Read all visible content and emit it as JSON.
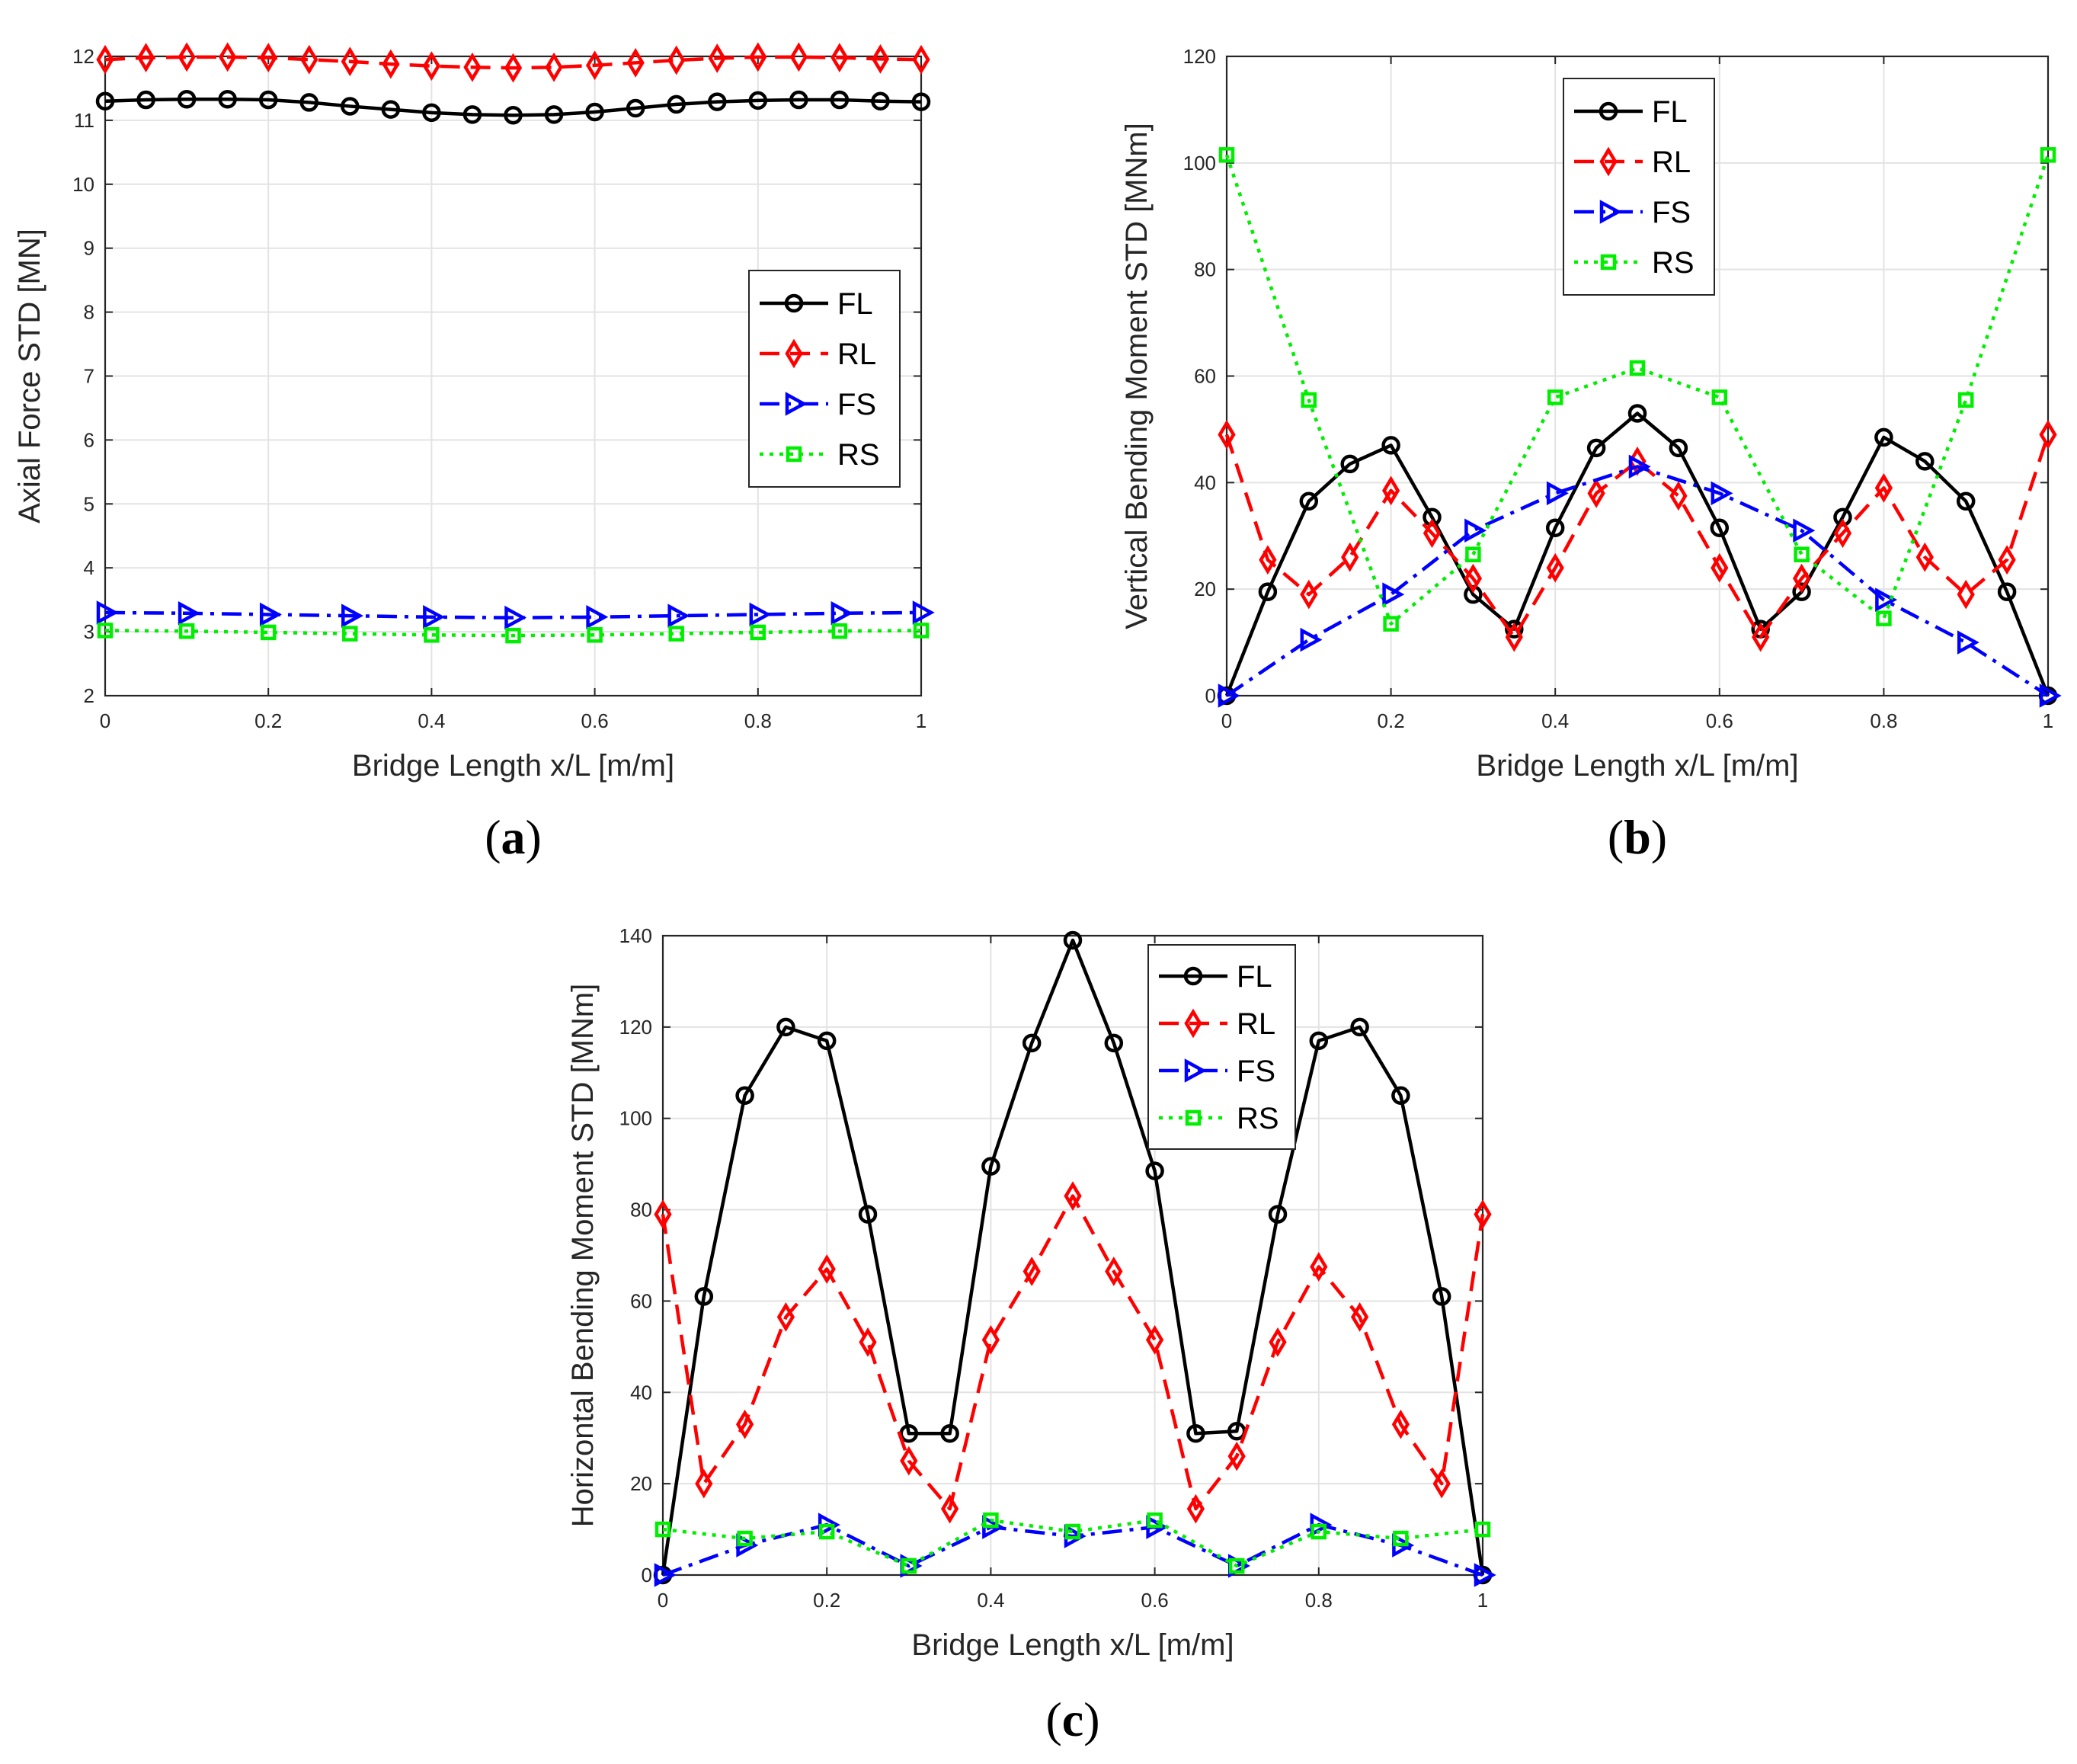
{
  "colors": {
    "FL": "#000000",
    "RL": "#ff0000",
    "FS": "#0000ff",
    "RS": "#00ee00",
    "grid": "#e3e3e3",
    "axis": "#262626"
  },
  "chart_data": [
    {
      "type": "line",
      "panel_label": {
        "open": "(",
        "letter": "a",
        "close": ")"
      },
      "xlabel": "Bridge Length x/L [m/m]",
      "ylabel": "Axial Force STD [MN]",
      "xlim": [
        0,
        1
      ],
      "ylim": [
        2,
        12
      ],
      "xticks": [
        "0",
        "0.2",
        "0.4",
        "0.6",
        "0.8",
        "1"
      ],
      "yticks": [
        "2",
        "3",
        "4",
        "5",
        "6",
        "7",
        "8",
        "9",
        "10",
        "11",
        "12"
      ],
      "grid": true,
      "legend_position": "right-middle",
      "series": [
        {
          "name": "FL",
          "style": "solid",
          "marker": "circle",
          "x": [
            0,
            0.05,
            0.1,
            0.15,
            0.2,
            0.25,
            0.3,
            0.35,
            0.4,
            0.45,
            0.5,
            0.55,
            0.6,
            0.65,
            0.7,
            0.75,
            0.8,
            0.85,
            0.9,
            0.95,
            1
          ],
          "y": [
            11.3,
            11.32,
            11.33,
            11.33,
            11.32,
            11.28,
            11.22,
            11.17,
            11.12,
            11.09,
            11.08,
            11.09,
            11.13,
            11.19,
            11.25,
            11.29,
            11.31,
            11.32,
            11.32,
            11.3,
            11.29
          ]
        },
        {
          "name": "RL",
          "style": "dashed",
          "marker": "diamond",
          "x": [
            0,
            0.05,
            0.1,
            0.15,
            0.2,
            0.25,
            0.3,
            0.35,
            0.4,
            0.45,
            0.5,
            0.55,
            0.6,
            0.65,
            0.7,
            0.75,
            0.8,
            0.85,
            0.9,
            0.95,
            1
          ],
          "y": [
            11.95,
            11.98,
            11.99,
            11.99,
            11.98,
            11.95,
            11.92,
            11.88,
            11.85,
            11.83,
            11.82,
            11.83,
            11.86,
            11.9,
            11.94,
            11.97,
            11.99,
            11.99,
            11.98,
            11.96,
            11.95
          ]
        },
        {
          "name": "FS",
          "style": "dashdot",
          "marker": "triangle",
          "x": [
            0,
            0.1,
            0.2,
            0.3,
            0.4,
            0.5,
            0.6,
            0.7,
            0.8,
            0.9,
            1
          ],
          "y": [
            3.3,
            3.29,
            3.27,
            3.25,
            3.23,
            3.22,
            3.23,
            3.25,
            3.27,
            3.29,
            3.3
          ]
        },
        {
          "name": "RS",
          "style": "dotted",
          "marker": "square",
          "x": [
            0,
            0.1,
            0.2,
            0.3,
            0.4,
            0.5,
            0.6,
            0.7,
            0.8,
            0.9,
            1
          ],
          "y": [
            3.02,
            3.01,
            2.99,
            2.97,
            2.95,
            2.94,
            2.95,
            2.97,
            2.99,
            3.01,
            3.02
          ]
        }
      ]
    },
    {
      "type": "line",
      "panel_label": {
        "open": "(",
        "letter": "b",
        "close": ")"
      },
      "xlabel": "Bridge Length x/L [m/m]",
      "ylabel": "Vertical Bending Moment STD [MNm]",
      "xlim": [
        0,
        1
      ],
      "ylim": [
        0,
        120
      ],
      "xticks": [
        "0",
        "0.2",
        "0.4",
        "0.6",
        "0.8",
        "1"
      ],
      "yticks": [
        "0",
        "20",
        "40",
        "60",
        "80",
        "100",
        "120"
      ],
      "grid": true,
      "legend_position": "top-center",
      "series": [
        {
          "name": "FL",
          "style": "solid",
          "marker": "circle",
          "x": [
            0,
            0.05,
            0.1,
            0.15,
            0.2,
            0.25,
            0.3,
            0.35,
            0.4,
            0.45,
            0.5,
            0.55,
            0.6,
            0.65,
            0.7,
            0.75,
            0.8,
            0.85,
            0.9,
            0.95,
            1
          ],
          "y": [
            0,
            19.5,
            36.5,
            43.5,
            47,
            33.5,
            19,
            12.5,
            31.5,
            46.5,
            53,
            46.5,
            31.5,
            12.5,
            19.5,
            33.5,
            48.5,
            44,
            36.5,
            19.5,
            0
          ]
        },
        {
          "name": "RL",
          "style": "dashed",
          "marker": "diamond",
          "x": [
            0,
            0.05,
            0.1,
            0.15,
            0.2,
            0.25,
            0.3,
            0.35,
            0.4,
            0.45,
            0.5,
            0.55,
            0.6,
            0.65,
            0.7,
            0.75,
            0.8,
            0.85,
            0.9,
            0.95,
            1
          ],
          "y": [
            49,
            25.5,
            19,
            26,
            38.5,
            30.5,
            22,
            11,
            24,
            38,
            44,
            37.5,
            24,
            11,
            22,
            30.5,
            39,
            26,
            19,
            25.5,
            49
          ]
        },
        {
          "name": "FS",
          "style": "dashdot",
          "marker": "triangle",
          "x": [
            0,
            0.1,
            0.2,
            0.3,
            0.4,
            0.5,
            0.6,
            0.7,
            0.8,
            0.9,
            1
          ],
          "y": [
            0,
            10.5,
            19,
            31,
            38,
            43,
            38,
            31,
            18,
            10,
            0
          ]
        },
        {
          "name": "RS",
          "style": "dotted",
          "marker": "square",
          "x": [
            0,
            0.1,
            0.2,
            0.3,
            0.4,
            0.5,
            0.6,
            0.7,
            0.8,
            0.9,
            1
          ],
          "y": [
            101.5,
            55.5,
            13.5,
            26.5,
            56,
            61.5,
            56,
            26.5,
            14.5,
            55.5,
            101.5
          ]
        }
      ]
    },
    {
      "type": "line",
      "panel_label": {
        "open": "(",
        "letter": "c",
        "close": ")"
      },
      "xlabel": "Bridge Length x/L [m/m]",
      "ylabel": "Horizontal Bending Moment STD [MNm]",
      "xlim": [
        0,
        1
      ],
      "ylim": [
        0,
        140
      ],
      "xticks": [
        "0",
        "0.2",
        "0.4",
        "0.6",
        "0.8",
        "1"
      ],
      "yticks": [
        "0",
        "20",
        "40",
        "60",
        "80",
        "100",
        "120",
        "140"
      ],
      "grid": true,
      "legend_position": "top-center",
      "series": [
        {
          "name": "FL",
          "style": "solid",
          "marker": "circle",
          "x": [
            0,
            0.05,
            0.1,
            0.15,
            0.2,
            0.25,
            0.3,
            0.35,
            0.4,
            0.45,
            0.5,
            0.55,
            0.6,
            0.65,
            0.7,
            0.75,
            0.8,
            0.85,
            0.9,
            0.95,
            1
          ],
          "y": [
            0,
            61,
            105,
            120,
            117,
            79,
            31,
            31,
            89.5,
            116.5,
            139,
            116.5,
            88.5,
            31,
            31.5,
            79,
            117,
            120,
            105,
            61,
            0
          ]
        },
        {
          "name": "RL",
          "style": "dashed",
          "marker": "diamond",
          "x": [
            0,
            0.05,
            0.1,
            0.15,
            0.2,
            0.25,
            0.3,
            0.35,
            0.4,
            0.45,
            0.5,
            0.55,
            0.6,
            0.65,
            0.7,
            0.75,
            0.8,
            0.85,
            0.9,
            0.95,
            1
          ],
          "y": [
            79,
            20,
            33,
            56.5,
            67,
            51,
            25,
            14.5,
            51.5,
            66.5,
            83,
            66.5,
            51.5,
            14.5,
            26,
            51,
            67.5,
            56.5,
            33,
            20,
            79
          ]
        },
        {
          "name": "FS",
          "style": "dashdot",
          "marker": "triangle",
          "x": [
            0,
            0.1,
            0.2,
            0.3,
            0.4,
            0.5,
            0.6,
            0.7,
            0.8,
            0.9,
            1
          ],
          "y": [
            0,
            6.5,
            11,
            2,
            10.5,
            8.5,
            10.5,
            2,
            11,
            6.5,
            0
          ]
        },
        {
          "name": "RS",
          "style": "dotted",
          "marker": "square",
          "x": [
            0,
            0.1,
            0.2,
            0.3,
            0.4,
            0.5,
            0.6,
            0.7,
            0.8,
            0.9,
            1
          ],
          "y": [
            10,
            8,
            9.5,
            2,
            12,
            9.5,
            12,
            2,
            9.5,
            8,
            10
          ]
        }
      ]
    }
  ]
}
